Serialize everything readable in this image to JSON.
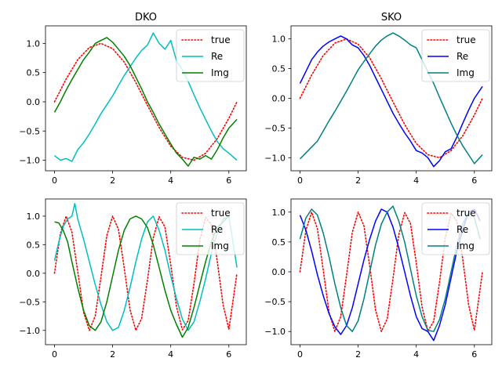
{
  "chart_data": [
    {
      "type": "line",
      "title": "DKO",
      "xlabel": "",
      "ylabel": "",
      "xlim": [
        -0.31,
        6.6
      ],
      "ylim": [
        -1.18,
        1.3
      ],
      "xticks": [
        "0",
        "2",
        "4",
        "6"
      ],
      "yticks": [
        "−1.0",
        "−0.5",
        "0.0",
        "0.5",
        "1.0"
      ],
      "legend_position": "top-right",
      "series": [
        {
          "name": "true",
          "style": "dotted",
          "color": "#ff0000",
          "x": [
            0,
            0.4,
            0.8,
            1.2,
            1.6,
            2.0,
            2.4,
            2.8,
            3.2,
            3.6,
            4.0,
            4.4,
            4.8,
            5.2,
            5.6,
            6.0,
            6.28
          ],
          "y": [
            0.0,
            0.39,
            0.72,
            0.93,
            1.0,
            0.91,
            0.68,
            0.33,
            -0.06,
            -0.44,
            -0.76,
            -0.95,
            -1.0,
            -0.88,
            -0.63,
            -0.28,
            0.0
          ]
        },
        {
          "name": "Re",
          "style": "solid",
          "color": "#00bfbf",
          "x": [
            0,
            0.2,
            0.4,
            0.6,
            0.8,
            1.0,
            1.2,
            1.4,
            1.6,
            1.8,
            2.0,
            2.2,
            2.4,
            2.6,
            2.8,
            3.0,
            3.2,
            3.4,
            3.6,
            3.8,
            4.0,
            4.2,
            4.4,
            4.6,
            4.8,
            5.0,
            5.2,
            5.4,
            5.6,
            5.8,
            6.0,
            6.28
          ],
          "y": [
            -0.92,
            -1.0,
            -0.97,
            -1.02,
            -0.82,
            -0.7,
            -0.55,
            -0.38,
            -0.2,
            -0.05,
            0.1,
            0.28,
            0.45,
            0.6,
            0.75,
            0.88,
            0.97,
            1.18,
            1.0,
            0.9,
            1.05,
            0.7,
            0.55,
            0.35,
            0.12,
            -0.1,
            -0.3,
            -0.5,
            -0.68,
            -0.8,
            -0.88,
            -1.0
          ]
        },
        {
          "name": "Img",
          "style": "solid",
          "color": "#008000",
          "x": [
            0,
            0.2,
            0.4,
            0.6,
            0.8,
            1.0,
            1.2,
            1.4,
            1.6,
            1.8,
            2.0,
            2.2,
            2.4,
            2.6,
            2.8,
            3.0,
            3.2,
            3.4,
            3.6,
            3.8,
            4.0,
            4.2,
            4.4,
            4.6,
            4.8,
            5.0,
            5.2,
            5.4,
            5.6,
            5.8,
            6.0,
            6.28
          ],
          "y": [
            -0.18,
            0.0,
            0.2,
            0.38,
            0.55,
            0.72,
            0.85,
            1.0,
            1.05,
            1.1,
            1.02,
            0.9,
            0.78,
            0.62,
            0.42,
            0.22,
            0.0,
            -0.18,
            -0.38,
            -0.55,
            -0.72,
            -0.88,
            -0.98,
            -1.1,
            -0.95,
            -0.98,
            -0.92,
            -0.98,
            -0.82,
            -0.62,
            -0.45,
            -0.3
          ]
        }
      ]
    },
    {
      "type": "line",
      "title": "SKO",
      "xlabel": "",
      "ylabel": "",
      "xlim": [
        -0.31,
        6.6
      ],
      "ylim": [
        -1.22,
        1.22
      ],
      "xticks": [
        "0",
        "2",
        "4",
        "6"
      ],
      "yticks": [
        "−1.0",
        "−0.5",
        "0.0",
        "0.5",
        "1.0"
      ],
      "legend_position": "top-right",
      "series": [
        {
          "name": "true",
          "style": "dotted",
          "color": "#ff0000",
          "x": [
            0,
            0.4,
            0.8,
            1.2,
            1.6,
            2.0,
            2.4,
            2.8,
            3.2,
            3.6,
            4.0,
            4.4,
            4.8,
            5.2,
            5.6,
            6.0,
            6.28
          ],
          "y": [
            0.0,
            0.39,
            0.72,
            0.93,
            1.0,
            0.91,
            0.68,
            0.33,
            -0.06,
            -0.44,
            -0.76,
            -0.95,
            -1.0,
            -0.88,
            -0.63,
            -0.28,
            0.0
          ]
        },
        {
          "name": "Re",
          "style": "solid",
          "color": "#0000ff",
          "x": [
            0,
            0.2,
            0.4,
            0.6,
            0.8,
            1.0,
            1.2,
            1.4,
            1.6,
            1.8,
            2.0,
            2.2,
            2.4,
            2.6,
            2.8,
            3.0,
            3.2,
            3.4,
            3.6,
            3.8,
            4.0,
            4.2,
            4.4,
            4.6,
            4.8,
            5.0,
            5.2,
            5.4,
            5.6,
            5.8,
            6.0,
            6.28
          ],
          "y": [
            0.25,
            0.45,
            0.65,
            0.78,
            0.88,
            0.95,
            1.0,
            1.05,
            1.0,
            0.9,
            0.85,
            0.72,
            0.55,
            0.35,
            0.15,
            -0.05,
            -0.25,
            -0.42,
            -0.58,
            -0.72,
            -0.88,
            -0.92,
            -1.0,
            -1.15,
            -1.05,
            -0.9,
            -0.85,
            -0.65,
            -0.42,
            -0.2,
            0.0,
            0.2
          ]
        },
        {
          "name": "Img",
          "style": "solid",
          "color": "#008080",
          "x": [
            0,
            0.2,
            0.4,
            0.6,
            0.8,
            1.0,
            1.2,
            1.4,
            1.6,
            1.8,
            2.0,
            2.2,
            2.4,
            2.6,
            2.8,
            3.0,
            3.2,
            3.4,
            3.6,
            3.8,
            4.0,
            4.2,
            4.4,
            4.6,
            4.8,
            5.0,
            5.2,
            5.4,
            5.6,
            5.8,
            6.0,
            6.28
          ],
          "y": [
            -1.02,
            -0.92,
            -0.82,
            -0.72,
            -0.55,
            -0.38,
            -0.22,
            -0.05,
            0.12,
            0.3,
            0.48,
            0.62,
            0.75,
            0.88,
            0.98,
            1.05,
            1.1,
            1.05,
            0.98,
            0.9,
            0.85,
            0.65,
            0.45,
            0.25,
            0.02,
            -0.2,
            -0.42,
            -0.62,
            -0.8,
            -0.95,
            -1.1,
            -0.95
          ]
        }
      ]
    },
    {
      "type": "line",
      "title": "",
      "xlabel": "",
      "ylabel": "",
      "xlim": [
        -0.31,
        6.6
      ],
      "ylim": [
        -1.25,
        1.3
      ],
      "xticks": [
        "0",
        "2",
        "4",
        "6"
      ],
      "yticks": [
        "−1.0",
        "−0.5",
        "0.0",
        "0.5",
        "1.0"
      ],
      "legend_position": "top-right",
      "series": [
        {
          "name": "true",
          "style": "dotted",
          "color": "#ff0000",
          "x": [
            0,
            0.2,
            0.4,
            0.6,
            0.8,
            1.0,
            1.2,
            1.4,
            1.6,
            1.8,
            2.0,
            2.2,
            2.4,
            2.6,
            2.8,
            3.0,
            3.2,
            3.4,
            3.6,
            3.8,
            4.0,
            4.2,
            4.4,
            4.6,
            4.8,
            5.0,
            5.2,
            5.4,
            5.6,
            5.8,
            6.0,
            6.28
          ],
          "y": [
            0.0,
            0.69,
            1.0,
            0.72,
            0.03,
            -0.68,
            -1.0,
            -0.75,
            -0.06,
            0.66,
            1.0,
            0.77,
            0.09,
            -0.64,
            -1.0,
            -0.79,
            -0.12,
            0.62,
            0.99,
            0.81,
            0.15,
            -0.59,
            -0.99,
            -0.83,
            -0.18,
            0.57,
            0.98,
            0.85,
            0.21,
            -0.55,
            -0.98,
            0.0
          ]
        },
        {
          "name": "Re",
          "style": "solid",
          "color": "#00bfbf",
          "x": [
            0,
            0.15,
            0.3,
            0.45,
            0.6,
            0.7,
            0.8,
            1.0,
            1.2,
            1.4,
            1.6,
            1.8,
            2.0,
            2.2,
            2.4,
            2.6,
            2.8,
            3.0,
            3.2,
            3.4,
            3.6,
            3.8,
            4.0,
            4.2,
            4.4,
            4.6,
            4.8,
            5.0,
            5.2,
            5.4,
            5.6,
            5.8,
            6.0,
            6.28
          ],
          "y": [
            0.22,
            0.55,
            0.82,
            0.95,
            1.0,
            1.22,
            0.95,
            0.6,
            0.2,
            -0.2,
            -0.55,
            -0.85,
            -1.0,
            -0.95,
            -0.65,
            -0.25,
            0.2,
            0.6,
            0.9,
            1.0,
            0.75,
            0.4,
            -0.05,
            -0.45,
            -0.8,
            -1.0,
            -0.85,
            -0.5,
            -0.1,
            0.35,
            0.7,
            0.95,
            1.0,
            0.1
          ]
        },
        {
          "name": "Img",
          "style": "solid",
          "color": "#008000",
          "x": [
            0,
            0.15,
            0.3,
            0.45,
            0.6,
            0.8,
            1.0,
            1.2,
            1.4,
            1.6,
            1.8,
            2.0,
            2.2,
            2.4,
            2.6,
            2.8,
            3.0,
            3.2,
            3.4,
            3.6,
            3.8,
            4.0,
            4.2,
            4.4,
            4.6,
            4.8,
            5.0,
            5.2,
            5.4,
            5.6,
            5.8,
            6.0
          ],
          "y": [
            0.9,
            0.88,
            0.75,
            0.55,
            0.2,
            -0.25,
            -0.65,
            -0.92,
            -1.0,
            -0.85,
            -0.5,
            -0.05,
            0.4,
            0.75,
            0.95,
            1.0,
            0.95,
            0.8,
            0.5,
            0.1,
            -0.3,
            -0.65,
            -0.9,
            -1.12,
            -0.95,
            -0.6,
            -0.2,
            0.2,
            0.55,
            0.8,
            0.9,
            1.0
          ]
        }
      ]
    },
    {
      "type": "line",
      "title": "",
      "xlabel": "",
      "ylabel": "",
      "xlim": [
        -0.31,
        6.6
      ],
      "ylim": [
        -1.22,
        1.22
      ],
      "xticks": [
        "0",
        "2",
        "4",
        "6"
      ],
      "yticks": [
        "−1.0",
        "−0.5",
        "0.0",
        "0.5",
        "1.0"
      ],
      "legend_position": "top-right",
      "series": [
        {
          "name": "true",
          "style": "dotted",
          "color": "#ff0000",
          "x": [
            0,
            0.2,
            0.4,
            0.6,
            0.8,
            1.0,
            1.2,
            1.4,
            1.6,
            1.8,
            2.0,
            2.2,
            2.4,
            2.6,
            2.8,
            3.0,
            3.2,
            3.4,
            3.6,
            3.8,
            4.0,
            4.2,
            4.4,
            4.6,
            4.8,
            5.0,
            5.2,
            5.4,
            5.6,
            5.8,
            6.0,
            6.28
          ],
          "y": [
            0.0,
            0.69,
            1.0,
            0.72,
            0.03,
            -0.68,
            -1.0,
            -0.75,
            -0.06,
            0.66,
            1.0,
            0.77,
            0.09,
            -0.64,
            -1.0,
            -0.79,
            -0.12,
            0.62,
            0.99,
            0.81,
            0.15,
            -0.59,
            -0.99,
            -0.83,
            -0.18,
            0.57,
            0.98,
            0.85,
            0.21,
            -0.55,
            -0.98,
            0.0
          ]
        },
        {
          "name": "Re",
          "style": "solid",
          "color": "#0000ff",
          "x": [
            0,
            0.2,
            0.4,
            0.6,
            0.8,
            1.0,
            1.2,
            1.4,
            1.6,
            1.8,
            2.0,
            2.2,
            2.4,
            2.6,
            2.8,
            3.0,
            3.2,
            3.4,
            3.6,
            3.8,
            4.0,
            4.2,
            4.4,
            4.6,
            4.8,
            5.0,
            5.2,
            5.4,
            5.6,
            5.8,
            6.0,
            6.2
          ],
          "y": [
            0.95,
            0.7,
            0.35,
            -0.05,
            -0.4,
            -0.7,
            -0.92,
            -1.05,
            -0.9,
            -0.6,
            -0.2,
            0.2,
            0.55,
            0.85,
            1.05,
            1.0,
            0.75,
            0.4,
            0.0,
            -0.4,
            -0.75,
            -0.95,
            -1.0,
            -1.15,
            -0.9,
            -0.55,
            -0.1,
            0.35,
            0.7,
            1.0,
            1.05,
            0.85
          ]
        },
        {
          "name": "Img",
          "style": "solid",
          "color": "#008080",
          "x": [
            0,
            0.2,
            0.4,
            0.6,
            0.8,
            1.0,
            1.2,
            1.4,
            1.6,
            1.8,
            2.0,
            2.2,
            2.4,
            2.6,
            2.8,
            3.0,
            3.2,
            3.4,
            3.6,
            3.8,
            4.0,
            4.2,
            4.4,
            4.6,
            4.8,
            5.0,
            5.2,
            5.4,
            5.6,
            5.8,
            6.0,
            6.2
          ],
          "y": [
            0.55,
            0.9,
            1.05,
            0.95,
            0.65,
            0.25,
            -0.2,
            -0.6,
            -0.9,
            -1.0,
            -0.82,
            -0.45,
            0.0,
            0.45,
            0.8,
            1.0,
            1.1,
            0.85,
            0.5,
            0.05,
            -0.4,
            -0.75,
            -0.98,
            -1.0,
            -0.8,
            -0.45,
            0.0,
            0.45,
            0.8,
            1.0,
            0.9,
            0.55
          ]
        }
      ]
    }
  ]
}
